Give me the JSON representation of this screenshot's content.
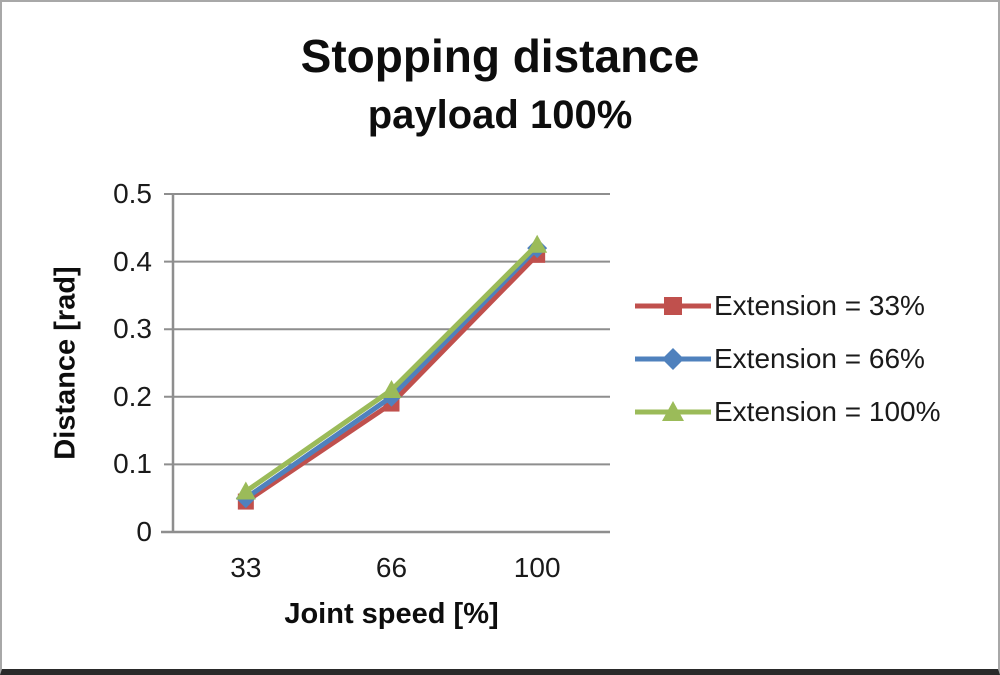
{
  "chart_data": {
    "type": "line",
    "title": "Stopping distance",
    "subtitle": "payload 100%",
    "xlabel": "Joint speed [%]",
    "ylabel": "Distance [rad]",
    "categories": [
      "33",
      "66",
      "100"
    ],
    "series": [
      {
        "name": "Extension = 33%",
        "color": "#C0504D",
        "marker": "square",
        "values": [
          0.045,
          0.19,
          0.41
        ]
      },
      {
        "name": "Extension = 66%",
        "color": "#4F81BD",
        "marker": "diamond",
        "values": [
          0.05,
          0.2,
          0.42
        ]
      },
      {
        "name": "Extension = 100%",
        "color": "#9BBB59",
        "marker": "triangle",
        "values": [
          0.06,
          0.21,
          0.425
        ]
      }
    ],
    "ylim": [
      0,
      0.5
    ],
    "yticks": [
      0,
      0.1,
      0.2,
      0.3,
      0.4,
      0.5
    ],
    "grid": true,
    "legend_position": "right",
    "colors": {
      "gridline": "#8e8e8e",
      "axis": "#8e8e8e",
      "text": "#1a1a1a",
      "title": "#0d0d0d"
    }
  }
}
